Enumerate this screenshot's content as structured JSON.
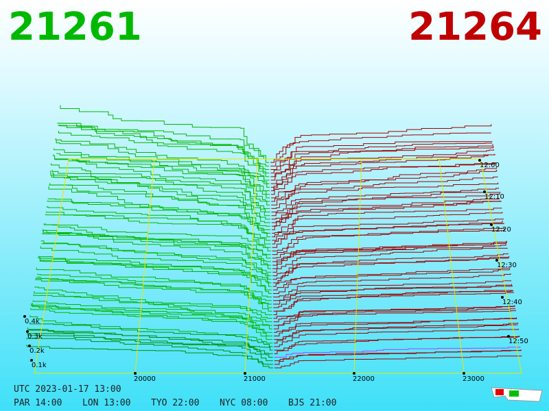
{
  "prices": {
    "bid": "21261",
    "ask": "21264"
  },
  "depth_axis": [
    "0.4k",
    "0.3k",
    "0.2k",
    "0.1k"
  ],
  "price_axis": [
    "20000",
    "21000",
    "22000",
    "23000"
  ],
  "time_axis": [
    "12:00",
    "12:10",
    "12:20",
    "12:30",
    "12:40",
    "12:50"
  ],
  "clock": {
    "utc": "UTC 2023-01-17 13:00",
    "zones": [
      "PAR 14:00",
      "LON 13:00",
      "TYO 22:00",
      "NYC 08:00",
      "BJS 21:00"
    ]
  }
}
